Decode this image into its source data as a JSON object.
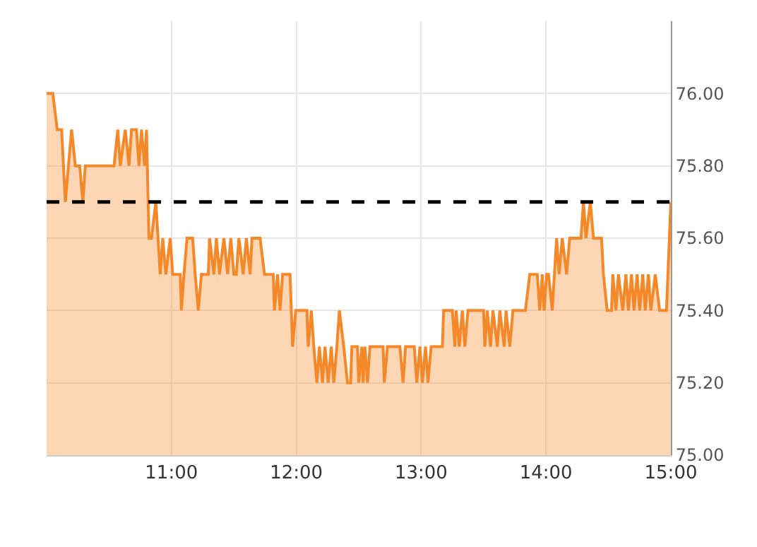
{
  "chart_data": {
    "type": "area",
    "xlim": [
      10,
      15
    ],
    "ylim": [
      75.0,
      76.2
    ],
    "xticks": [
      {
        "value": 11,
        "label": "11:00"
      },
      {
        "value": 12,
        "label": "12:00"
      },
      {
        "value": 13,
        "label": "13:00"
      },
      {
        "value": 14,
        "label": "14:00"
      },
      {
        "value": 15,
        "label": "15:00"
      }
    ],
    "yticks": [
      {
        "value": 75,
        "label": "75.00"
      },
      {
        "value": 75.2,
        "label": "75.20"
      },
      {
        "value": 75.4,
        "label": "75.40"
      },
      {
        "value": 75.6,
        "label": "75.60"
      },
      {
        "value": 75.8,
        "label": "75.80"
      },
      {
        "value": 76,
        "label": "76.00"
      }
    ],
    "grid": true,
    "marker": "none",
    "line_style": "solid",
    "ref_lines": [
      {
        "axis": "y",
        "value": 75.7,
        "color": "#000000",
        "line_style": "dashed"
      }
    ],
    "x": [
      10.0,
      10.05,
      10.085,
      10.12,
      10.15,
      10.175,
      10.2,
      10.23,
      10.265,
      10.29,
      10.31,
      10.54,
      10.57,
      10.59,
      10.63,
      10.66,
      10.68,
      10.72,
      10.74,
      10.76,
      10.785,
      10.8,
      10.82,
      10.84,
      10.875,
      10.91,
      10.93,
      10.955,
      10.99,
      11.01,
      11.07,
      11.08,
      11.1,
      11.125,
      11.17,
      11.19,
      11.215,
      11.24,
      11.295,
      11.305,
      11.34,
      11.36,
      11.385,
      11.42,
      11.45,
      11.475,
      11.5,
      11.52,
      11.54,
      11.575,
      11.6,
      11.63,
      11.645,
      11.71,
      11.745,
      11.815,
      11.825,
      11.85,
      11.87,
      11.89,
      11.95,
      11.97,
      11.995,
      12.085,
      12.095,
      12.12,
      12.14,
      12.165,
      12.185,
      12.21,
      12.23,
      12.255,
      12.28,
      12.3,
      12.325,
      12.345,
      12.38,
      12.41,
      12.435,
      12.445,
      12.49,
      12.5,
      12.525,
      12.535,
      12.55,
      12.57,
      12.59,
      12.695,
      12.705,
      12.73,
      12.83,
      12.855,
      12.875,
      12.945,
      12.965,
      12.99,
      13.01,
      13.035,
      13.055,
      13.08,
      13.17,
      13.18,
      13.25,
      13.27,
      13.28,
      13.305,
      13.33,
      13.35,
      13.375,
      13.5,
      13.51,
      13.53,
      13.555,
      13.575,
      13.61,
      13.63,
      13.665,
      13.68,
      13.71,
      13.735,
      13.835,
      13.87,
      13.93,
      13.95,
      13.97,
      13.985,
      14.005,
      14.02,
      14.05,
      14.085,
      14.105,
      14.13,
      14.165,
      14.19,
      14.28,
      14.3,
      14.32,
      14.355,
      14.38,
      14.445,
      14.46,
      14.49,
      14.525,
      14.535,
      14.56,
      14.58,
      14.615,
      14.64,
      14.66,
      14.685,
      14.705,
      14.73,
      14.75,
      14.775,
      14.795,
      14.82,
      14.84,
      14.875,
      14.91,
      14.965,
      15.0
    ],
    "series": [
      {
        "color": "#f5892a",
        "values": [
          76.0,
          76.0,
          75.9,
          75.9,
          75.7,
          75.8,
          75.9,
          75.8,
          75.8,
          75.7,
          75.8,
          75.8,
          75.9,
          75.8,
          75.9,
          75.8,
          75.9,
          75.9,
          75.8,
          75.9,
          75.8,
          75.9,
          75.6,
          75.6,
          75.7,
          75.5,
          75.6,
          75.5,
          75.6,
          75.5,
          75.5,
          75.4,
          75.5,
          75.6,
          75.6,
          75.5,
          75.4,
          75.5,
          75.5,
          75.6,
          75.5,
          75.6,
          75.5,
          75.6,
          75.5,
          75.6,
          75.5,
          75.5,
          75.6,
          75.5,
          75.6,
          75.5,
          75.6,
          75.6,
          75.5,
          75.5,
          75.4,
          75.5,
          75.4,
          75.5,
          75.5,
          75.3,
          75.4,
          75.4,
          75.3,
          75.4,
          75.3,
          75.2,
          75.3,
          75.2,
          75.3,
          75.2,
          75.3,
          75.2,
          75.3,
          75.4,
          75.3,
          75.2,
          75.2,
          75.3,
          75.3,
          75.2,
          75.3,
          75.2,
          75.3,
          75.2,
          75.3,
          75.3,
          75.2,
          75.3,
          75.3,
          75.2,
          75.3,
          75.3,
          75.2,
          75.3,
          75.2,
          75.3,
          75.2,
          75.3,
          75.3,
          75.4,
          75.4,
          75.3,
          75.4,
          75.3,
          75.4,
          75.3,
          75.4,
          75.4,
          75.3,
          75.4,
          75.3,
          75.4,
          75.3,
          75.4,
          75.3,
          75.4,
          75.3,
          75.4,
          75.4,
          75.5,
          75.5,
          75.4,
          75.5,
          75.4,
          75.5,
          75.5,
          75.4,
          75.6,
          75.5,
          75.6,
          75.5,
          75.6,
          75.6,
          75.7,
          75.6,
          75.7,
          75.6,
          75.6,
          75.5,
          75.4,
          75.4,
          75.5,
          75.4,
          75.5,
          75.4,
          75.5,
          75.4,
          75.5,
          75.4,
          75.5,
          75.4,
          75.5,
          75.4,
          75.5,
          75.4,
          75.5,
          75.4,
          75.4,
          75.7
        ]
      }
    ]
  }
}
